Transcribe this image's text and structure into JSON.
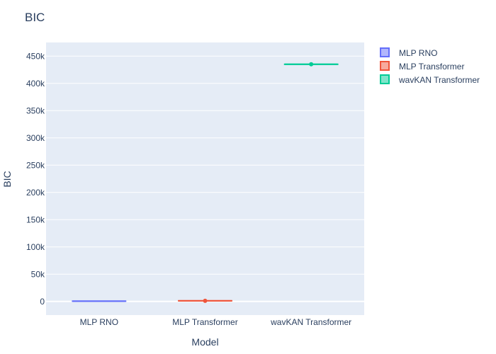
{
  "chart_data": {
    "type": "box",
    "title": "BIC",
    "xlabel": "Model",
    "ylabel": "BIC",
    "categories": [
      "MLP RNO",
      "MLP Transformer",
      "wavKAN Transformer"
    ],
    "ylim": [
      -25000,
      475000
    ],
    "y_ticks": [
      0,
      50000,
      100000,
      150000,
      200000,
      250000,
      300000,
      350000,
      400000,
      450000
    ],
    "y_tick_labels": [
      "0",
      "50k",
      "100k",
      "150k",
      "200k",
      "250k",
      "300k",
      "350k",
      "400k",
      "450k"
    ],
    "grid": true,
    "legend_position": "top-right",
    "series": [
      {
        "name": "MLP RNO",
        "category": "MLP RNO",
        "color": "#636efa",
        "median": 500,
        "q1": 500,
        "q3": 500,
        "points": []
      },
      {
        "name": "MLP Transformer",
        "category": "MLP Transformer",
        "color": "#ef553b",
        "median": 1200,
        "q1": 1200,
        "q3": 1200,
        "points": [
          1200
        ]
      },
      {
        "name": "wavKAN Transformer",
        "category": "wavKAN Transformer",
        "color": "#00cc96",
        "median": 435000,
        "q1": 435000,
        "q3": 435000,
        "points": [
          435000
        ]
      }
    ]
  }
}
